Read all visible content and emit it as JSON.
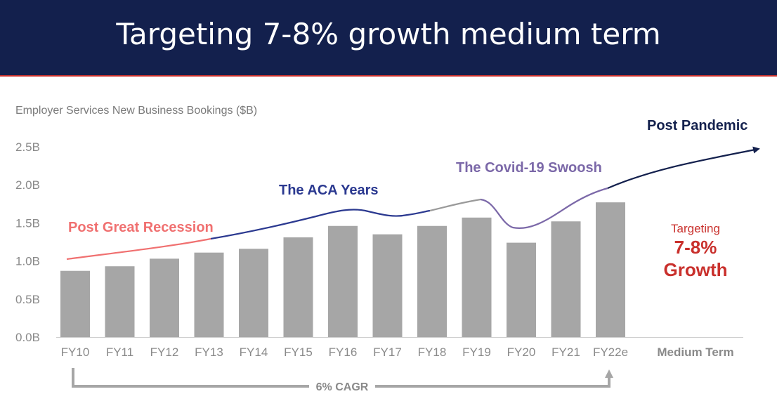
{
  "title": "Targeting 7-8% growth medium term",
  "colors": {
    "header_bg": "#13204d",
    "bar": "#a6a6a6",
    "recession": "#f07070",
    "aca": "#2b3990",
    "covid": "#7b68a8",
    "pandemic": "#13204d",
    "target": "#c9302c"
  },
  "chart_data": {
    "type": "bar",
    "title": "Employer Services  New Business Bookings ($B)",
    "categories": [
      "FY10",
      "FY11",
      "FY12",
      "FY13",
      "FY14",
      "FY15",
      "FY16",
      "FY17",
      "FY18",
      "FY19",
      "FY20",
      "FY21",
      "FY22e",
      "Medium Term"
    ],
    "values": [
      0.87,
      0.93,
      1.03,
      1.11,
      1.16,
      1.31,
      1.46,
      1.35,
      1.46,
      1.57,
      1.24,
      1.52,
      1.77,
      null
    ],
    "y_ticks": [
      "0.0B",
      "0.5B",
      "1.0B",
      "1.5B",
      "2.0B",
      "2.5B"
    ],
    "ylim": [
      0,
      2.5
    ],
    "grid": false,
    "annotations": {
      "post_great_recession": "Post Great Recession",
      "aca_years": "The ACA Years",
      "covid_swoosh": "The Covid-19 Swoosh",
      "post_pandemic": "Post Pandemic",
      "cagr": "6% CAGR",
      "target_pre": "Targeting",
      "target_value": "7-8%",
      "target_growth": "Growth"
    }
  }
}
